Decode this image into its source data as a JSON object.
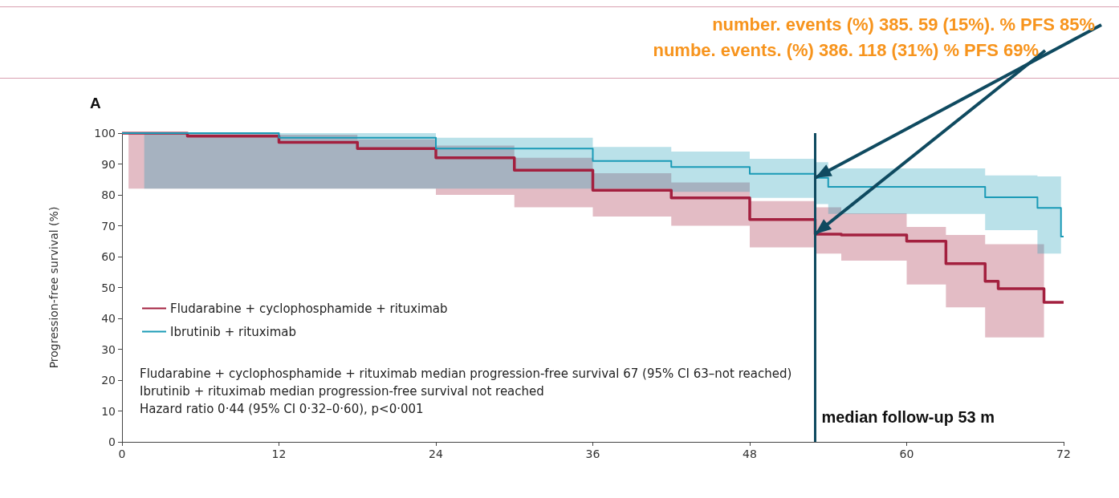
{
  "chart_data": {
    "type": "step",
    "ylabel": "Progression-free survival (%)",
    "xlim": [
      0,
      72
    ],
    "xticks": [
      0,
      12,
      24,
      36,
      48,
      60,
      72
    ],
    "ylim": [
      0,
      100
    ],
    "yticks": [
      0,
      10,
      20,
      30,
      40,
      50,
      60,
      70,
      80,
      90,
      100
    ],
    "grid": false,
    "legend": "bottom left",
    "marker": "none",
    "line_style": "solid",
    "series": [
      {
        "name": "Fludarabine + cyclophosphamide + rituximab",
        "color": "#a3203f",
        "x": [
          0,
          0.5,
          5,
          12,
          18,
          24,
          30,
          36,
          42,
          48,
          53,
          55,
          60,
          63,
          66,
          67,
          70.5,
          72
        ],
        "values": [
          100,
          100,
          99,
          97,
          95,
          92,
          88,
          81.5,
          79,
          72,
          67.3,
          67,
          65,
          57.7,
          52,
          49.6,
          45.2,
          45.2
        ],
        "lower": [
          null,
          82,
          82,
          82,
          82,
          80,
          76,
          73,
          70,
          63,
          61,
          58.7,
          51,
          43.6,
          33.8,
          33.8,
          33.8,
          null
        ],
        "upper": [
          null,
          100,
          100,
          99.5,
          98,
          96,
          92,
          87,
          84,
          78,
          76,
          74,
          69.6,
          67,
          64,
          64,
          64,
          null
        ]
      },
      {
        "name": "Ibrutinib + rituximab",
        "color": "#1a9ab6",
        "x": [
          0,
          1.7,
          8,
          12,
          24,
          36,
          42,
          48,
          53,
          54,
          66,
          70,
          71.8,
          72
        ],
        "values": [
          100,
          100,
          100,
          98.5,
          95,
          91,
          89,
          86.8,
          85.5,
          82.6,
          79.2,
          75.8,
          66.5,
          66.5
        ],
        "lower": [
          null,
          82,
          82,
          82,
          82,
          82,
          81,
          79,
          77,
          73.8,
          68.6,
          61,
          61,
          null
        ],
        "upper": [
          null,
          100,
          100,
          100,
          98.5,
          95.5,
          94,
          91.7,
          90.6,
          88.6,
          86.3,
          86,
          86,
          null
        ]
      }
    ],
    "ref_lines": [
      {
        "axis": "x",
        "value": 53,
        "label": "median follow-up 53 m",
        "color": "#0f4a60"
      }
    ],
    "annotations": [
      {
        "text": "number. events (%) 385. 59 (15%). % PFS 85%",
        "x": 53,
        "y": 85.5
      },
      {
        "text": "numbe. events. (%) 386. 118 (31%) % PFS 69%",
        "x": 53,
        "y": 67.3
      },
      "A",
      "Fludarabine + cyclophosphamide + rituximab median progression-free survival 67 (95% CI 63–not reached)",
      "Ibrutinib + rituximab median progression-free survival not reached",
      "Hazard ratio 0·44 (95% CI 0·32–0·60), p<0·001"
    ]
  }
}
